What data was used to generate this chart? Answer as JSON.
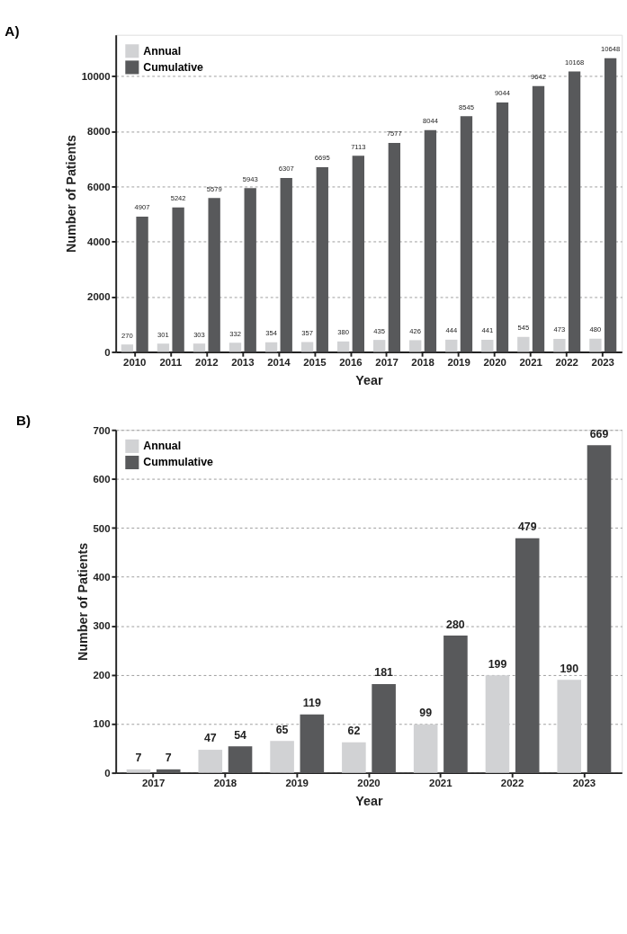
{
  "chart_data": [
    {
      "type": "bar",
      "title": "A)",
      "xlabel": "Year",
      "ylabel": "Number of Patients",
      "categories": [
        "2010",
        "2011",
        "2012",
        "2013",
        "2014",
        "2015",
        "2016",
        "2017",
        "2018",
        "2019",
        "2020",
        "2021",
        "2022",
        "2023"
      ],
      "series": [
        {
          "name": "Annual",
          "color": "#d1d2d4",
          "values": [
            270,
            301,
            303,
            332,
            354,
            357,
            380,
            435,
            426,
            444,
            441,
            545,
            473,
            480
          ]
        },
        {
          "name": "Cumulative",
          "color": "#58595b",
          "values": [
            4907,
            5242,
            5579,
            5943,
            6307,
            6695,
            7113,
            7577,
            8044,
            8545,
            9044,
            9642,
            10168,
            10648
          ]
        }
      ],
      "ylim": [
        0,
        11500
      ],
      "yticks": [
        0,
        2000,
        4000,
        6000,
        8000,
        10000
      ],
      "grid": "y",
      "legend": "top left",
      "data_labels": true
    },
    {
      "type": "bar",
      "title": "B)",
      "xlabel": "Year",
      "ylabel": "Number of Patients",
      "categories": [
        "2017",
        "2018",
        "2019",
        "2020",
        "2021",
        "2022",
        "2023"
      ],
      "series": [
        {
          "name": "Annual",
          "color": "#d1d2d4",
          "values": [
            7,
            47,
            65,
            62,
            99,
            199,
            190
          ]
        },
        {
          "name": "Cummulative",
          "color": "#58595b",
          "values": [
            7,
            54,
            119,
            181,
            280,
            479,
            669
          ]
        }
      ],
      "ylim": [
        0,
        700
      ],
      "yticks": [
        0,
        100,
        200,
        300,
        400,
        500,
        600,
        700
      ],
      "grid": "y",
      "legend": "top left",
      "data_labels": true
    }
  ]
}
